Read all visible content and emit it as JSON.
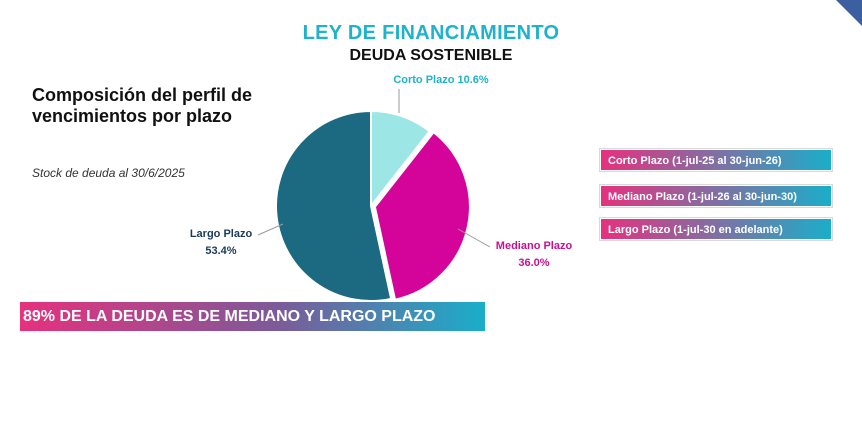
{
  "header": {
    "title": "LEY DE FINANCIAMIENTO",
    "subtitle": "DEUDA SOSTENIBLE"
  },
  "left_panel": {
    "heading": "Composición del perfil de vencimientos por plazo",
    "note": "Stock de deuda al 30/6/2025"
  },
  "legend": {
    "items": [
      {
        "label": "Corto Plazo (1-jul-25 al 30-jun-26)"
      },
      {
        "label": "Mediano Plazo (1-jul-26 al 30-jun-30)"
      },
      {
        "label": "Largo Plazo (1-jul-30 en adelante)"
      }
    ]
  },
  "banner": {
    "text": "89% DE LA DEUDA ES DE MEDIANO Y LARGO PLAZO"
  },
  "chart_data": {
    "type": "pie",
    "slices": [
      {
        "name": "Corto Plazo",
        "label": "Corto Plazo 10.6%",
        "value": 10.6,
        "color": "#9de6e6"
      },
      {
        "name": "Mediano Plazo",
        "label": "Mediano Plazo",
        "pct": "36.0%",
        "value": 36.0,
        "color": "#d4049a"
      },
      {
        "name": "Largo Plazo",
        "label": "Largo Plazo",
        "pct": "53.4%",
        "value": 53.4,
        "color": "#1b6a82"
      }
    ]
  },
  "colors": {
    "title": "#1fb2cc",
    "label_dark": "#1b3a5c",
    "label_magenta": "#c8118f",
    "label_teal": "#1fb2cc",
    "pill_start": "#e6317e",
    "pill_end": "#1aaec9"
  }
}
